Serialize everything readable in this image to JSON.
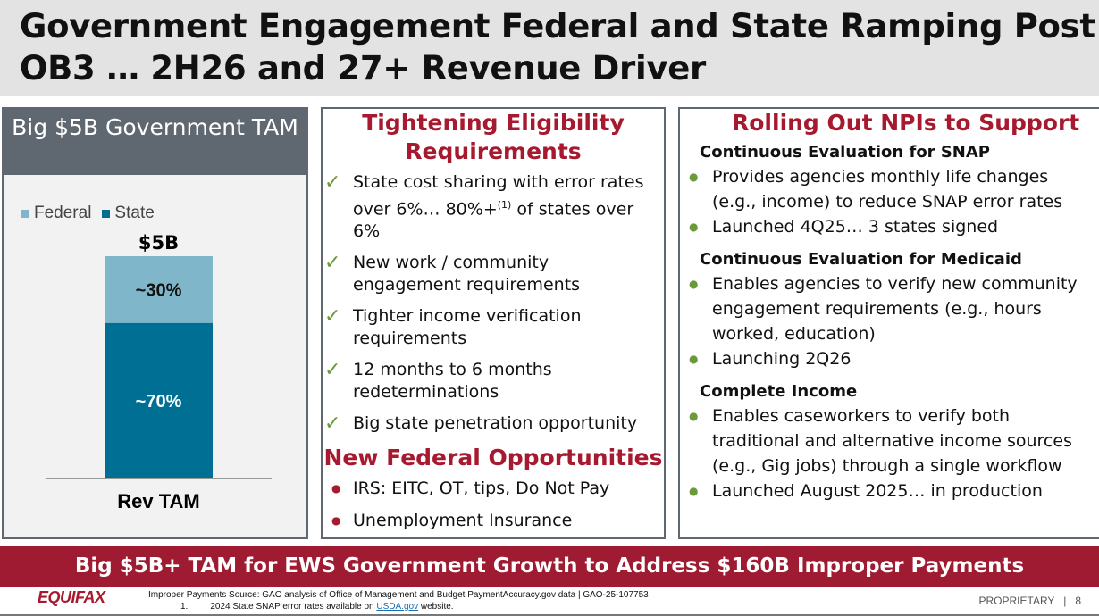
{
  "title": {
    "line1": "Government Engagement Federal and State Ramping Post",
    "line2": "OB3 … 2H26 and 27+ Revenue Driver"
  },
  "left": {
    "header": "Big $5B Government TAM"
  },
  "chart_data": {
    "type": "bar",
    "stacked": true,
    "categories": [
      "Rev TAM"
    ],
    "series": [
      {
        "name": "State",
        "values": [
          70
        ],
        "label": "~70%",
        "color": "#006f94"
      },
      {
        "name": "Federal",
        "values": [
          30
        ],
        "label": "~30%",
        "color": "#80b6c9"
      }
    ],
    "total_label": "$5B",
    "ylim": [
      0,
      100
    ],
    "legend": "top-left"
  },
  "mid": {
    "title": "Tightening Eligibility Requirements",
    "checks": [
      {
        "text": "State cost sharing with error rates over 6%… 80%+",
        "sup": "(1)",
        "after": " of states over 6%"
      },
      {
        "text": "New work / community engagement requirements"
      },
      {
        "text": "Tighter income verification requirements"
      },
      {
        "text": "12 months to 6 months redeterminations"
      },
      {
        "text": "Big state penetration opportunity"
      }
    ],
    "check_mark": "✓",
    "title2": "New Federal Opportunities",
    "bullets": [
      "IRS: EITC, OT, tips, Do Not Pay",
      "Unemployment Insurance"
    ]
  },
  "right": {
    "title": "Rolling Out NPIs to Support",
    "sections": [
      {
        "heading": "Continuous Evaluation for SNAP",
        "bullets": [
          "Provides agencies monthly life changes (e.g., income) to reduce SNAP error rates",
          "Launched 4Q25… 3 states signed"
        ]
      },
      {
        "heading": "Continuous Evaluation for Medicaid",
        "bullets": [
          "Enables agencies to verify new community engagement requirements (e.g., hours worked, education)",
          "Launching 2Q26"
        ]
      },
      {
        "heading": "Complete Income",
        "bullets": [
          "Enables caseworkers to verify both traditional and alternative income sources (e.g., Gig jobs) through a single workflow",
          "Launched August 2025… in production"
        ]
      }
    ]
  },
  "banner": "Big $5B+ TAM for EWS Government Growth to Address $160B Improper Payments",
  "footer": {
    "logo": "EQUIFAX",
    "source": "Improper Payments Source: GAO analysis of Office of Management and Budget PaymentAccuracy.gov data | GAO-25-107753",
    "note_num": "1.",
    "note_pre": "2024 State SNAP error rates available on ",
    "note_link": "USDA.gov",
    "note_post": " website.",
    "proprietary": "PROPRIETARY   |   8"
  },
  "colors": {
    "accent": "#a6192e",
    "check": "#6a9a3a",
    "bullet_green": "#6a9a3a"
  }
}
